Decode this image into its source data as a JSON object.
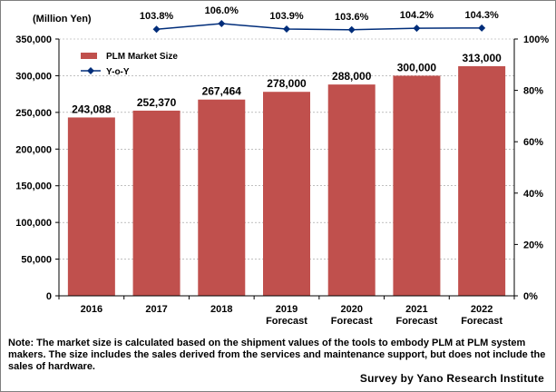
{
  "chart_data": {
    "type": "bar+line",
    "unit_label": "(Million Yen)",
    "categories": [
      [
        "2016"
      ],
      [
        "2017"
      ],
      [
        "2018"
      ],
      [
        "2019",
        "Forecast"
      ],
      [
        "2020",
        "Forecast"
      ],
      [
        "2021",
        "Forecast"
      ],
      [
        "2022",
        "Forecast"
      ]
    ],
    "series": [
      {
        "name": "PLM Market Size",
        "type": "bar",
        "axis": "left",
        "color": "#c0504d",
        "values": [
          243088,
          252370,
          267464,
          278000,
          288000,
          300000,
          313000
        ],
        "labels": [
          "243,088",
          "252,370",
          "267,464",
          "278,000",
          "288,000",
          "300,000",
          "313,000"
        ]
      },
      {
        "name": "Y-o-Y",
        "type": "line",
        "axis": "right",
        "color": "#002d7a",
        "values": [
          null,
          103.8,
          106.0,
          103.9,
          103.6,
          104.2,
          104.3
        ],
        "labels": [
          "",
          "103.8%",
          "106.0%",
          "103.9%",
          "103.6%",
          "104.2%",
          "104.3%"
        ]
      }
    ],
    "left_axis": {
      "min": 0,
      "max": 350000,
      "ticks": [
        "0",
        "50,000",
        "100,000",
        "150,000",
        "200,000",
        "250,000",
        "300,000",
        "350,000"
      ]
    },
    "right_axis": {
      "min": 0,
      "max": 100,
      "ticks": [
        "0%",
        "20%",
        "40%",
        "60%",
        "80%",
        "100%"
      ]
    },
    "legend_position": "top-left"
  },
  "note": "Note: The market size is calculated based on the shipment values of the tools to embody PLM at PLM system makers.  The size includes the sales derived from the services and maintenance support, but does not include the sales of hardware.",
  "source": "Survey  by Yano Research Institute"
}
